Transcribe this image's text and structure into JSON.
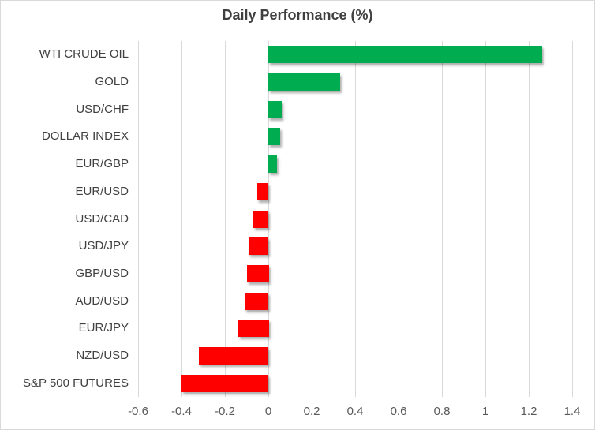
{
  "chart_data": {
    "type": "bar",
    "orientation": "horizontal",
    "title": "Daily Performance (%)",
    "categories": [
      "WTI CRUDE OIL",
      "GOLD",
      "USD/CHF",
      "DOLLAR INDEX",
      "EUR/GBP",
      "EUR/USD",
      "USD/CAD",
      "USD/JPY",
      "GBP/USD",
      "AUD/USD",
      "EUR/JPY",
      "NZD/USD",
      "S&P 500 FUTURES"
    ],
    "values": [
      1.26,
      0.33,
      0.06,
      0.055,
      0.04,
      -0.05,
      -0.07,
      -0.09,
      -0.1,
      -0.11,
      -0.14,
      -0.32,
      -0.4
    ],
    "xlabel": "",
    "ylabel": "",
    "xlim": [
      -0.6,
      1.4
    ],
    "x_ticks": [
      -0.6,
      -0.4,
      -0.2,
      0,
      0.2,
      0.4,
      0.6,
      0.8,
      1,
      1.2,
      1.4
    ],
    "x_tick_labels": [
      "-0.6",
      "-0.4",
      "-0.2",
      "0",
      "0.2",
      "0.4",
      "0.6",
      "0.8",
      "1",
      "1.2",
      "1.4"
    ],
    "grid": true,
    "legend": false,
    "colors": {
      "positive_bar": "#00AC50",
      "negative_bar": "#FF0000",
      "gridline": "#D9D9D9",
      "title_text": "#404040",
      "category_text": "#404040",
      "tick_text": "#595959",
      "chart_border": "#D9D9D9"
    }
  }
}
